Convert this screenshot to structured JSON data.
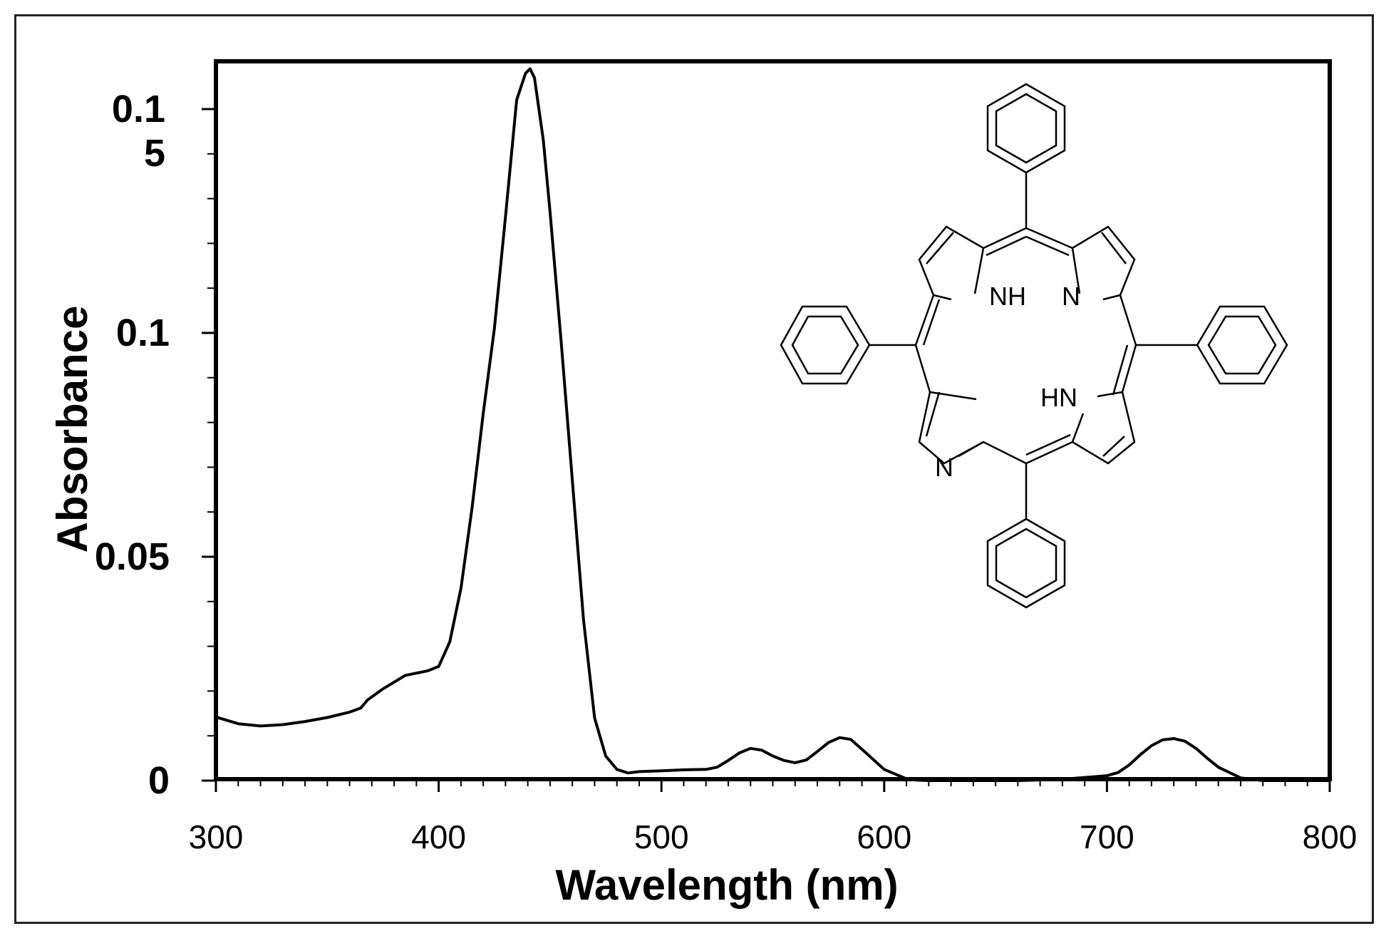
{
  "chart_data": {
    "type": "line",
    "xlabel": "Wavelength (nm)",
    "ylabel": "Absorbance",
    "xlim": [
      300,
      800
    ],
    "ylim": [
      0,
      0.15
    ],
    "x_ticks": [
      300,
      400,
      500,
      600,
      700,
      800
    ],
    "x_tick_labels": [
      "300",
      "400",
      "500",
      "600",
      "700",
      "800"
    ],
    "y_ticks": [
      0,
      0.05,
      0.1,
      0.15
    ],
    "y_tick_labels": [
      "0",
      "0.05",
      "0.1",
      "0.1\n5"
    ],
    "grid": false,
    "legend": "none",
    "series": [
      {
        "color": "#000000",
        "x": [
          300,
          310,
          320,
          330,
          340,
          350,
          360,
          365,
          368,
          375,
          385,
          395,
          400,
          405,
          410,
          415,
          420,
          425,
          430,
          435,
          439,
          441,
          443,
          447,
          450,
          455,
          460,
          465,
          470,
          475,
          480,
          485,
          490,
          500,
          510,
          520,
          525,
          530,
          535,
          540,
          545,
          550,
          555,
          560,
          565,
          570,
          575,
          580,
          585,
          590,
          600,
          610,
          615,
          620,
          640,
          660,
          680,
          700,
          705,
          710,
          715,
          720,
          725,
          730,
          735,
          740,
          745,
          750,
          760,
          770,
          800
        ],
        "y": [
          0.0142,
          0.0127,
          0.0122,
          0.0125,
          0.0132,
          0.0141,
          0.0153,
          0.0162,
          0.018,
          0.0205,
          0.0235,
          0.0245,
          0.0255,
          0.031,
          0.043,
          0.061,
          0.082,
          0.101,
          0.126,
          0.152,
          0.158,
          0.159,
          0.157,
          0.143,
          0.127,
          0.098,
          0.067,
          0.036,
          0.014,
          0.0055,
          0.0025,
          0.0017,
          0.002,
          0.0022,
          0.0024,
          0.0025,
          0.003,
          0.0045,
          0.0062,
          0.0072,
          0.0068,
          0.0055,
          0.0045,
          0.004,
          0.0046,
          0.0065,
          0.0085,
          0.0096,
          0.0092,
          0.007,
          0.0025,
          0.0004,
          0.0001,
          0.0,
          0.0,
          0.0,
          0.0003,
          0.0011,
          0.0018,
          0.0035,
          0.0058,
          0.0078,
          0.0091,
          0.0094,
          0.0088,
          0.0072,
          0.005,
          0.003,
          0.0006,
          0.0,
          0.0
        ]
      }
    ]
  },
  "inset": {
    "atom_labels": [
      "NH",
      "N",
      "HN",
      "N"
    ]
  }
}
